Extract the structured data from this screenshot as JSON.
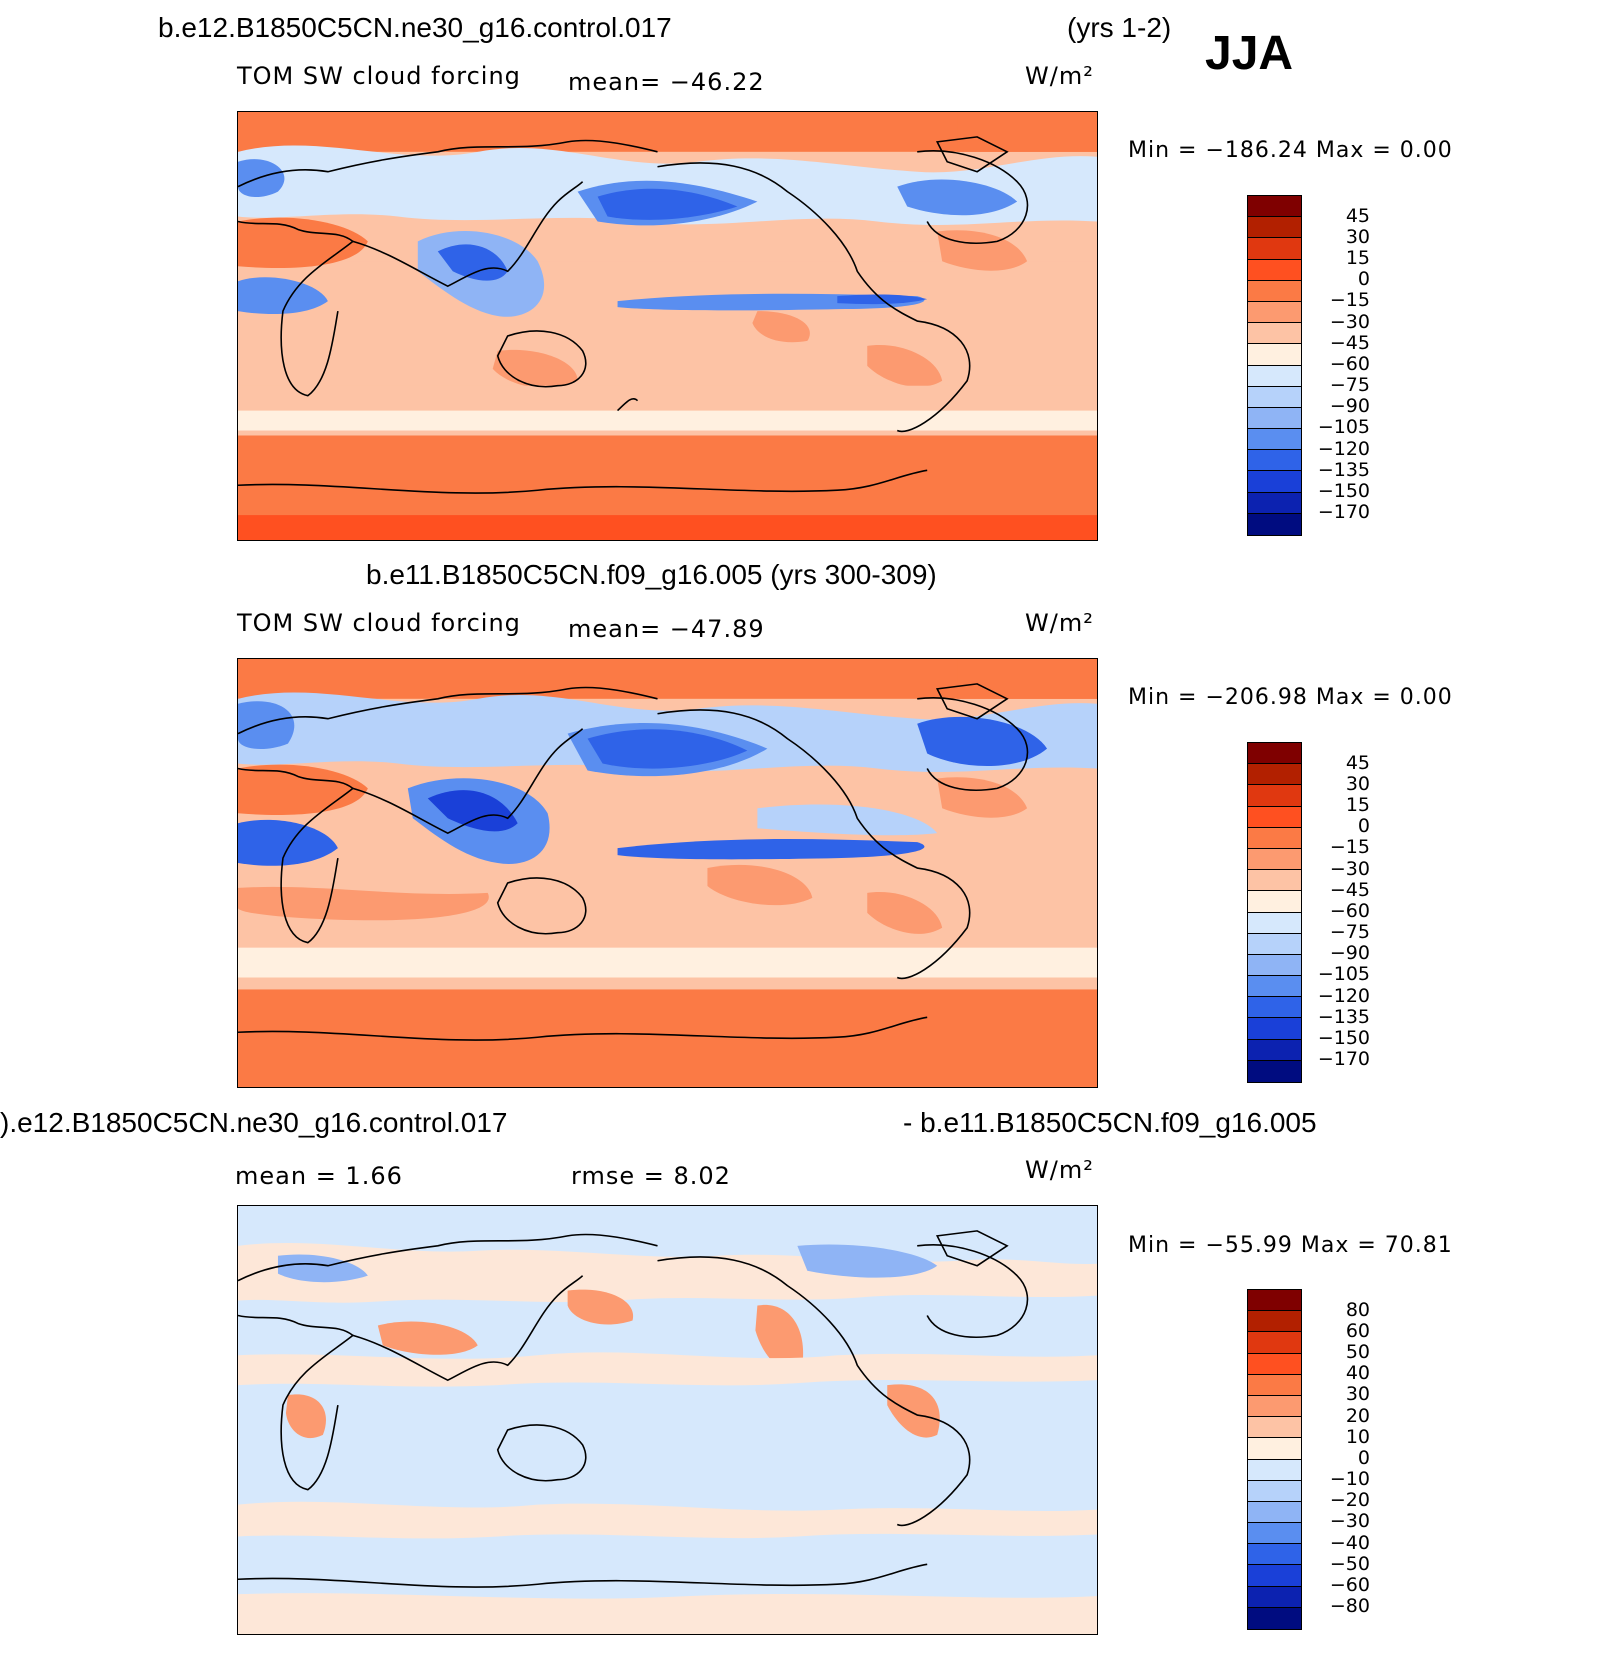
{
  "season": "JJA",
  "panels": [
    {
      "title_left": "b.e12.B1850C5CN.ne30_g16.control.017",
      "title_right": "(yrs 1-2)",
      "left_label": "TOM  SW  cloud  forcing",
      "center_label": "mean=  −46.22",
      "units": "W/m²",
      "minmax": "Min  =  −186.24  Max  =      0.00",
      "colorbar_labels": [
        "45",
        "30",
        "15",
        "0",
        "−15",
        "−30",
        "−45",
        "−60",
        "−75",
        "−90",
        "−105",
        "−120",
        "−135",
        "−150",
        "−170"
      ]
    },
    {
      "title_left": "b.e11.B1850C5CN.f09_g16.005 (yrs 300-309)",
      "left_label": "TOM  SW  cloud  forcing",
      "center_label": "mean=  −47.89",
      "units": "W/m²",
      "minmax": "Min  =  −206.98  Max  =      0.00",
      "colorbar_labels": [
        "45",
        "30",
        "15",
        "0",
        "−15",
        "−30",
        "−45",
        "−60",
        "−75",
        "−90",
        "−105",
        "−120",
        "−135",
        "−150",
        "−170"
      ]
    },
    {
      "title_left": ").e12.B1850C5CN.ne30_g16.control.017",
      "title_right": "- b.e11.B1850C5CN.f09_g16.005",
      "left_label": "mean  =      1.66",
      "center_label": "rmse  =      8.02",
      "units": "W/m²",
      "minmax": "Min  =  −55.99  Max  =    70.81",
      "colorbar_labels": [
        "80",
        "60",
        "50",
        "40",
        "30",
        "20",
        "10",
        "0",
        "−10",
        "−20",
        "−30",
        "−40",
        "−50",
        "−60",
        "−80"
      ]
    }
  ],
  "colors": {
    "scale": [
      "#7f0000",
      "#b22000",
      "#e03810",
      "#ff5020",
      "#fb7a45",
      "#fc9a70",
      "#fdc3a5",
      "#fff0e0",
      "#d6e8fc",
      "#b6d2fa",
      "#8fb4f5",
      "#5a8ef0",
      "#2f63e8",
      "#1a40d8",
      "#0c22b0",
      "#000c80"
    ],
    "map_bg_top": "#fb7a45",
    "map_bg_mid": "#fdc3a5",
    "map_bg_diff": "#fde7d8"
  }
}
